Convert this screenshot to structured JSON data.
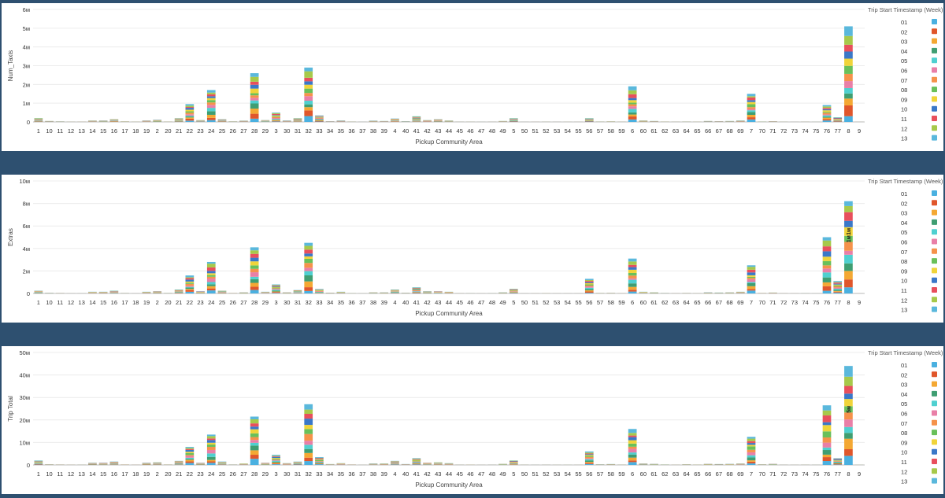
{
  "legend": {
    "title": "Trip Start Timestamp (Week)",
    "weeks": [
      "01",
      "02",
      "03",
      "04",
      "05",
      "06",
      "07",
      "08",
      "09",
      "10",
      "11",
      "12",
      "13"
    ],
    "colors": [
      "#4ab0e0",
      "#e0562b",
      "#f4a833",
      "#3f9e72",
      "#4fd0d0",
      "#e97fa7",
      "#f5924a",
      "#69c05a",
      "#f0d43a",
      "#3a78c8",
      "#e84f5c",
      "#a7c94a",
      "#5ab8dc"
    ]
  },
  "categories": [
    "1",
    "10",
    "11",
    "12",
    "13",
    "14",
    "15",
    "16",
    "17",
    "18",
    "19",
    "2",
    "20",
    "21",
    "22",
    "23",
    "24",
    "25",
    "26",
    "27",
    "28",
    "29",
    "3",
    "30",
    "31",
    "32",
    "33",
    "34",
    "35",
    "36",
    "37",
    "38",
    "39",
    "4",
    "40",
    "41",
    "42",
    "43",
    "44",
    "45",
    "46",
    "47",
    "48",
    "49",
    "5",
    "50",
    "51",
    "52",
    "53",
    "54",
    "55",
    "56",
    "57",
    "58",
    "59",
    "6",
    "60",
    "61",
    "62",
    "63",
    "64",
    "65",
    "66",
    "67",
    "68",
    "69",
    "7",
    "70",
    "71",
    "72",
    "73",
    "74",
    "75",
    "76",
    "77",
    "8",
    "9"
  ],
  "chart_data": [
    {
      "type": "bar",
      "stacked": true,
      "xlabel": "Pickup Community Area",
      "ylabel": "Num_Taxis",
      "ylim": [
        0,
        6000000
      ],
      "yticks": [
        0,
        1000000,
        2000000,
        3000000,
        4000000,
        5000000,
        6000000
      ],
      "ytick_labels": [
        "0",
        "1м",
        "2м",
        "3м",
        "4м",
        "5м",
        "6м"
      ],
      "totals": [
        200000,
        50000,
        30000,
        10000,
        10000,
        80000,
        80000,
        150000,
        30000,
        10000,
        80000,
        120000,
        20000,
        200000,
        950000,
        100000,
        1700000,
        150000,
        30000,
        70000,
        2600000,
        100000,
        500000,
        80000,
        200000,
        2900000,
        350000,
        40000,
        80000,
        20000,
        5000,
        70000,
        50000,
        180000,
        40000,
        300000,
        100000,
        150000,
        80000,
        10000,
        10000,
        5000,
        10000,
        50000,
        200000,
        5000,
        5000,
        10000,
        5000,
        5000,
        5000,
        200000,
        20000,
        30000,
        10000,
        1900000,
        80000,
        50000,
        20000,
        10000,
        20000,
        10000,
        50000,
        40000,
        50000,
        80000,
        1500000,
        20000,
        40000,
        10000,
        5000,
        10000,
        5000,
        900000,
        250000,
        5100000,
        5000
      ],
      "labels": []
    },
    {
      "type": "bar",
      "stacked": true,
      "xlabel": "Pickup Community Area",
      "ylabel": "Extras",
      "ylim": [
        0,
        10000000
      ],
      "yticks": [
        0,
        2000000,
        4000000,
        6000000,
        8000000,
        10000000
      ],
      "ytick_labels": [
        "0",
        "2м",
        "4м",
        "6м",
        "8м",
        "10м"
      ],
      "totals": [
        250000,
        50000,
        40000,
        10000,
        10000,
        150000,
        150000,
        250000,
        40000,
        10000,
        150000,
        200000,
        40000,
        350000,
        1600000,
        200000,
        2800000,
        250000,
        40000,
        100000,
        4100000,
        150000,
        800000,
        100000,
        300000,
        4500000,
        400000,
        60000,
        150000,
        30000,
        10000,
        100000,
        100000,
        350000,
        60000,
        550000,
        200000,
        200000,
        150000,
        20000,
        20000,
        10000,
        20000,
        100000,
        400000,
        10000,
        10000,
        20000,
        10000,
        10000,
        10000,
        1300000,
        40000,
        50000,
        20000,
        3100000,
        150000,
        100000,
        40000,
        20000,
        40000,
        20000,
        100000,
        80000,
        100000,
        150000,
        2500000,
        40000,
        80000,
        20000,
        10000,
        20000,
        10000,
        5000000,
        1100000,
        8200000,
        10000
      ],
      "labels": [
        {
          "category": "8",
          "week": "09",
          "text": "1м"
        },
        {
          "category": "8",
          "week": "08",
          "text": "1м"
        }
      ]
    },
    {
      "type": "bar",
      "stacked": true,
      "xlabel": "Pickup Community Area",
      "ylabel": "Trip Total",
      "ylim": [
        0,
        50000000
      ],
      "yticks": [
        0,
        10000000,
        20000000,
        30000000,
        40000000,
        50000000
      ],
      "ytick_labels": [
        "0",
        "10м",
        "20м",
        "30м",
        "40м",
        "50м"
      ],
      "totals": [
        2000000,
        300000,
        200000,
        100000,
        100000,
        1000000,
        1000000,
        1500000,
        200000,
        100000,
        1000000,
        1200000,
        200000,
        1800000,
        8000000,
        1000000,
        13500000,
        1500000,
        200000,
        700000,
        21500000,
        1000000,
        4500000,
        800000,
        1500000,
        27000000,
        3500000,
        400000,
        800000,
        200000,
        50000,
        700000,
        700000,
        1800000,
        400000,
        3000000,
        1000000,
        1200000,
        800000,
        100000,
        100000,
        50000,
        100000,
        500000,
        2000000,
        100000,
        50000,
        100000,
        50000,
        50000,
        50000,
        6000000,
        300000,
        400000,
        150000,
        16000000,
        700000,
        500000,
        200000,
        100000,
        300000,
        150000,
        500000,
        400000,
        500000,
        700000,
        12500000,
        300000,
        500000,
        100000,
        50000,
        100000,
        50000,
        26500000,
        3000000,
        44000000,
        50000
      ],
      "labels": [
        {
          "category": "8",
          "week": "08",
          "text": "5м"
        }
      ]
    }
  ]
}
